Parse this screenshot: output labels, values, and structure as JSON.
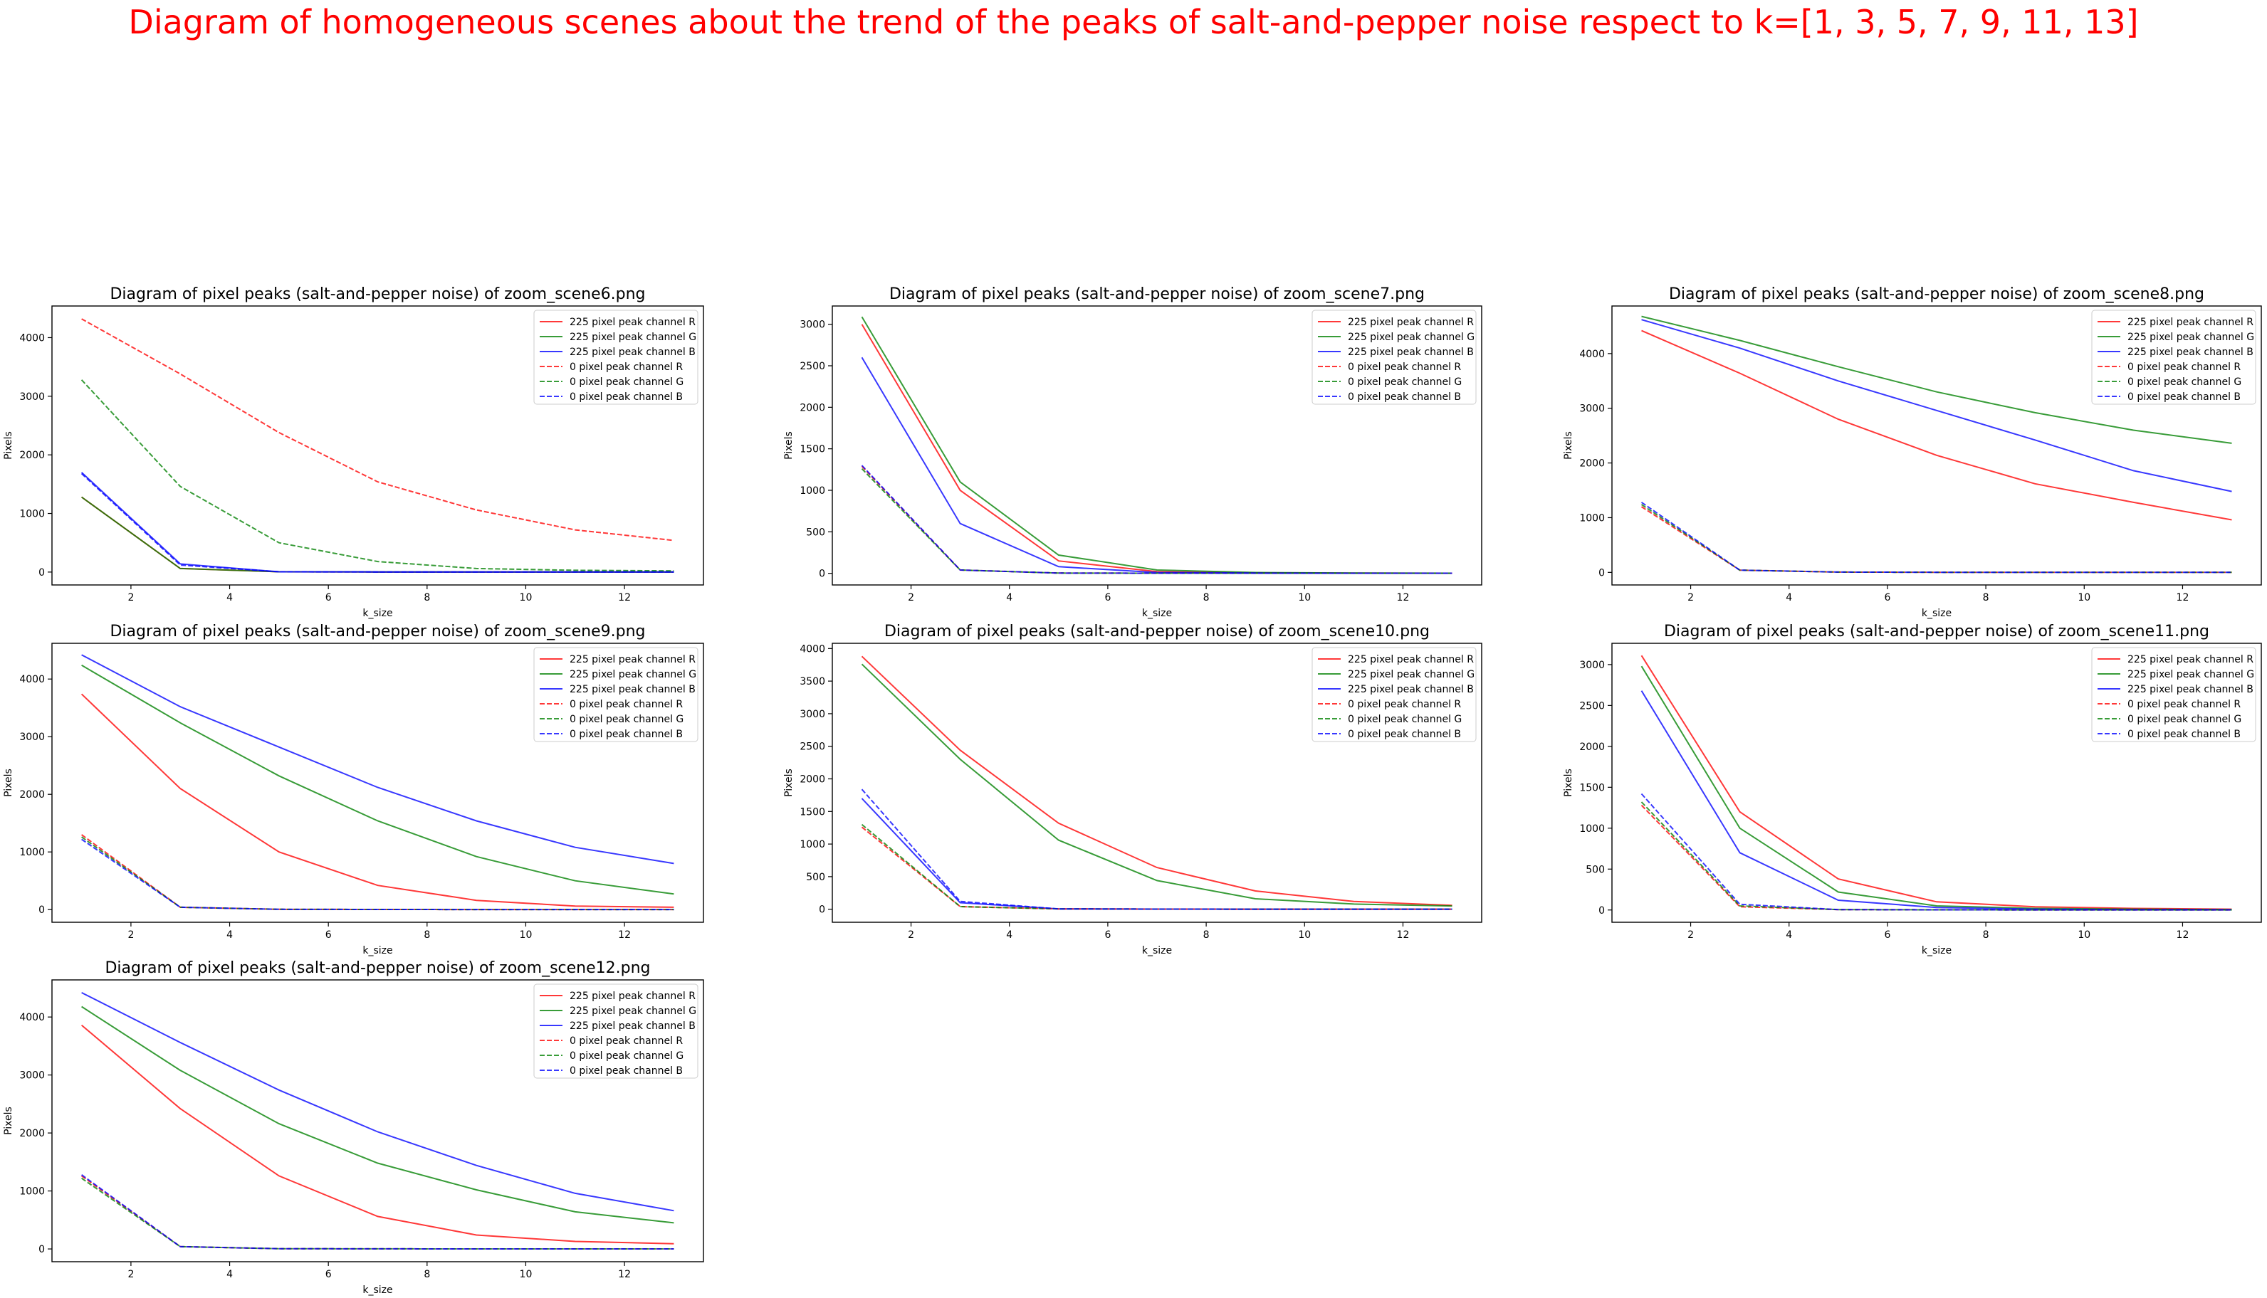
{
  "suptitle": "Diagram of homogeneous scenes about the trend of the peaks of salt-and-pepper noise respect to k=[1, 3, 5, 7, 9, 11, 13]",
  "colors": {
    "R": "#ff0000",
    "G": "#008000",
    "B": "#0000ff"
  },
  "chart_data": [
    {
      "type": "line",
      "title": "Diagram of pixel peaks (salt-and-pepper noise) of zoom_scene6.png",
      "xlabel": "k_size",
      "ylabel": "Pixels",
      "x": [
        1,
        3,
        5,
        7,
        9,
        11,
        13
      ],
      "xlim": [
        0.4,
        13.6
      ],
      "ylim": [
        -220,
        4540
      ],
      "xticks": [
        2,
        4,
        6,
        8,
        10,
        12
      ],
      "yticks": [
        0,
        1000,
        2000,
        3000,
        4000
      ],
      "legend": "upper right",
      "series": [
        {
          "name": "225 pixel peak channel R",
          "color": "R",
          "style": "solid",
          "values": [
            1280,
            60,
            5,
            2,
            1,
            1,
            1
          ]
        },
        {
          "name": "225 pixel peak channel G",
          "color": "G",
          "style": "solid",
          "values": [
            1280,
            60,
            5,
            2,
            1,
            1,
            1
          ]
        },
        {
          "name": "225 pixel peak channel B",
          "color": "B",
          "style": "solid",
          "values": [
            1700,
            140,
            5,
            2,
            1,
            1,
            1
          ]
        },
        {
          "name": "0 pixel peak channel R",
          "color": "R",
          "style": "dashed",
          "values": [
            4320,
            3380,
            2380,
            1540,
            1060,
            720,
            540
          ]
        },
        {
          "name": "0 pixel peak channel G",
          "color": "G",
          "style": "dashed",
          "values": [
            3280,
            1460,
            500,
            180,
            60,
            30,
            20
          ]
        },
        {
          "name": "0 pixel peak channel B",
          "color": "B",
          "style": "dashed",
          "values": [
            1680,
            120,
            5,
            2,
            1,
            1,
            1
          ]
        }
      ]
    },
    {
      "type": "line",
      "title": "Diagram of pixel peaks (salt-and-pepper noise) of zoom_scene7.png",
      "xlabel": "k_size",
      "ylabel": "Pixels",
      "x": [
        1,
        3,
        5,
        7,
        9,
        11,
        13
      ],
      "xlim": [
        0.4,
        13.6
      ],
      "ylim": [
        -140,
        3220
      ],
      "xticks": [
        2,
        4,
        6,
        8,
        10,
        12
      ],
      "yticks": [
        0,
        500,
        1000,
        1500,
        2000,
        2500,
        3000
      ],
      "legend": "upper right",
      "series": [
        {
          "name": "225 pixel peak channel R",
          "color": "R",
          "style": "solid",
          "values": [
            3000,
            1000,
            150,
            20,
            5,
            2,
            1
          ]
        },
        {
          "name": "225 pixel peak channel G",
          "color": "G",
          "style": "solid",
          "values": [
            3090,
            1100,
            220,
            40,
            10,
            3,
            1
          ]
        },
        {
          "name": "225 pixel peak channel B",
          "color": "B",
          "style": "solid",
          "values": [
            2600,
            600,
            80,
            10,
            3,
            1,
            1
          ]
        },
        {
          "name": "0 pixel peak channel R",
          "color": "R",
          "style": "dashed",
          "values": [
            1290,
            40,
            3,
            1,
            1,
            1,
            1
          ]
        },
        {
          "name": "0 pixel peak channel G",
          "color": "G",
          "style": "dashed",
          "values": [
            1260,
            40,
            3,
            1,
            1,
            1,
            1
          ]
        },
        {
          "name": "0 pixel peak channel B",
          "color": "B",
          "style": "dashed",
          "values": [
            1300,
            40,
            3,
            1,
            1,
            1,
            1
          ]
        }
      ]
    },
    {
      "type": "line",
      "title": "Diagram of pixel peaks (salt-and-pepper noise) of zoom_scene8.png",
      "xlabel": "k_size",
      "ylabel": "Pixels",
      "x": [
        1,
        3,
        5,
        7,
        9,
        11,
        13
      ],
      "xlim": [
        0.4,
        13.6
      ],
      "ylim": [
        -230,
        4870
      ],
      "xticks": [
        2,
        4,
        6,
        8,
        10,
        12
      ],
      "yticks": [
        0,
        1000,
        2000,
        3000,
        4000
      ],
      "legend": "upper right",
      "series": [
        {
          "name": "225 pixel peak channel R",
          "color": "R",
          "style": "solid",
          "values": [
            4420,
            3640,
            2800,
            2140,
            1620,
            1280,
            960
          ]
        },
        {
          "name": "225 pixel peak channel G",
          "color": "G",
          "style": "solid",
          "values": [
            4680,
            4240,
            3760,
            3300,
            2920,
            2600,
            2360
          ]
        },
        {
          "name": "225 pixel peak channel B",
          "color": "B",
          "style": "solid",
          "values": [
            4620,
            4100,
            3500,
            2960,
            2420,
            1860,
            1480
          ]
        },
        {
          "name": "0 pixel peak channel R",
          "color": "R",
          "style": "dashed",
          "values": [
            1200,
            40,
            5,
            2,
            1,
            1,
            1
          ]
        },
        {
          "name": "0 pixel peak channel G",
          "color": "G",
          "style": "dashed",
          "values": [
            1240,
            40,
            5,
            2,
            1,
            1,
            1
          ]
        },
        {
          "name": "0 pixel peak channel B",
          "color": "B",
          "style": "dashed",
          "values": [
            1280,
            40,
            5,
            2,
            1,
            1,
            1
          ]
        }
      ]
    },
    {
      "type": "line",
      "title": "Diagram of pixel peaks (salt-and-pepper noise) of zoom_scene9.png",
      "xlabel": "k_size",
      "ylabel": "Pixels",
      "x": [
        1,
        3,
        5,
        7,
        9,
        11,
        13
      ],
      "xlim": [
        0.4,
        13.6
      ],
      "ylim": [
        -220,
        4620
      ],
      "xticks": [
        2,
        4,
        6,
        8,
        10,
        12
      ],
      "yticks": [
        0,
        1000,
        2000,
        3000,
        4000
      ],
      "legend": "upper right",
      "series": [
        {
          "name": "225 pixel peak channel R",
          "color": "R",
          "style": "solid",
          "values": [
            3740,
            2100,
            1000,
            420,
            160,
            60,
            40
          ]
        },
        {
          "name": "225 pixel peak channel G",
          "color": "G",
          "style": "solid",
          "values": [
            4240,
            3240,
            2320,
            1540,
            920,
            500,
            270
          ]
        },
        {
          "name": "225 pixel peak channel B",
          "color": "B",
          "style": "solid",
          "values": [
            4420,
            3520,
            2820,
            2120,
            1540,
            1080,
            800
          ]
        },
        {
          "name": "0 pixel peak channel R",
          "color": "R",
          "style": "dashed",
          "values": [
            1300,
            40,
            5,
            2,
            1,
            1,
            1
          ]
        },
        {
          "name": "0 pixel peak channel G",
          "color": "G",
          "style": "dashed",
          "values": [
            1260,
            40,
            5,
            2,
            1,
            1,
            1
          ]
        },
        {
          "name": "0 pixel peak channel B",
          "color": "B",
          "style": "dashed",
          "values": [
            1220,
            40,
            5,
            2,
            1,
            1,
            1
          ]
        }
      ]
    },
    {
      "type": "line",
      "title": "Diagram of pixel peaks (salt-and-pepper noise) of zoom_scene10.png",
      "xlabel": "k_size",
      "ylabel": "Pixels",
      "x": [
        1,
        3,
        5,
        7,
        9,
        11,
        13
      ],
      "xlim": [
        0.4,
        13.6
      ],
      "ylim": [
        -200,
        4080
      ],
      "xticks": [
        2,
        4,
        6,
        8,
        10,
        12
      ],
      "yticks": [
        0,
        500,
        1000,
        1500,
        2000,
        2500,
        3000,
        3500,
        4000
      ],
      "legend": "upper right",
      "series": [
        {
          "name": "225 pixel peak channel R",
          "color": "R",
          "style": "solid",
          "values": [
            3880,
            2440,
            1320,
            640,
            280,
            120,
            60
          ]
        },
        {
          "name": "225 pixel peak channel G",
          "color": "G",
          "style": "solid",
          "values": [
            3760,
            2300,
            1060,
            440,
            160,
            80,
            50
          ]
        },
        {
          "name": "225 pixel peak channel B",
          "color": "B",
          "style": "solid",
          "values": [
            1700,
            100,
            5,
            2,
            1,
            1,
            1
          ]
        },
        {
          "name": "0 pixel peak channel R",
          "color": "R",
          "style": "dashed",
          "values": [
            1260,
            40,
            5,
            2,
            1,
            1,
            1
          ]
        },
        {
          "name": "0 pixel peak channel G",
          "color": "G",
          "style": "dashed",
          "values": [
            1300,
            40,
            5,
            2,
            1,
            1,
            1
          ]
        },
        {
          "name": "0 pixel peak channel B",
          "color": "B",
          "style": "dashed",
          "values": [
            1840,
            120,
            5,
            2,
            1,
            1,
            1
          ]
        }
      ]
    },
    {
      "type": "line",
      "title": "Diagram of pixel peaks (salt-and-pepper noise) of zoom_scene11.png",
      "xlabel": "k_size",
      "ylabel": "Pixels",
      "x": [
        1,
        3,
        5,
        7,
        9,
        11,
        13
      ],
      "xlim": [
        0.4,
        13.6
      ],
      "ylim": [
        -150,
        3260
      ],
      "xticks": [
        2,
        4,
        6,
        8,
        10,
        12
      ],
      "yticks": [
        0,
        500,
        1000,
        1500,
        2000,
        2500,
        3000
      ],
      "legend": "upper right",
      "series": [
        {
          "name": "225 pixel peak channel R",
          "color": "R",
          "style": "solid",
          "values": [
            3110,
            1200,
            380,
            100,
            40,
            20,
            10
          ]
        },
        {
          "name": "225 pixel peak channel G",
          "color": "G",
          "style": "solid",
          "values": [
            2980,
            1000,
            220,
            50,
            20,
            10,
            5
          ]
        },
        {
          "name": "225 pixel peak channel B",
          "color": "B",
          "style": "solid",
          "values": [
            2680,
            700,
            120,
            30,
            10,
            5,
            3
          ]
        },
        {
          "name": "0 pixel peak channel R",
          "color": "R",
          "style": "dashed",
          "values": [
            1280,
            40,
            5,
            2,
            1,
            1,
            1
          ]
        },
        {
          "name": "0 pixel peak channel G",
          "color": "G",
          "style": "dashed",
          "values": [
            1320,
            50,
            5,
            2,
            1,
            1,
            1
          ]
        },
        {
          "name": "0 pixel peak channel B",
          "color": "B",
          "style": "dashed",
          "values": [
            1420,
            70,
            5,
            2,
            1,
            1,
            1
          ]
        }
      ]
    },
    {
      "type": "line",
      "title": "Diagram of pixel peaks (salt-and-pepper noise) of zoom_scene12.png",
      "xlabel": "k_size",
      "ylabel": "Pixels",
      "x": [
        1,
        3,
        5,
        7,
        9,
        11,
        13
      ],
      "xlim": [
        0.4,
        13.6
      ],
      "ylim": [
        -220,
        4640
      ],
      "xticks": [
        2,
        4,
        6,
        8,
        10,
        12
      ],
      "yticks": [
        0,
        1000,
        2000,
        3000,
        4000
      ],
      "legend": "upper right",
      "series": [
        {
          "name": "225 pixel peak channel R",
          "color": "R",
          "style": "solid",
          "values": [
            3860,
            2420,
            1260,
            560,
            240,
            130,
            90
          ]
        },
        {
          "name": "225 pixel peak channel G",
          "color": "G",
          "style": "solid",
          "values": [
            4180,
            3080,
            2160,
            1480,
            1020,
            640,
            450
          ]
        },
        {
          "name": "225 pixel peak channel B",
          "color": "B",
          "style": "solid",
          "values": [
            4420,
            3560,
            2740,
            2020,
            1440,
            960,
            660
          ]
        },
        {
          "name": "0 pixel peak channel R",
          "color": "R",
          "style": "dashed",
          "values": [
            1260,
            40,
            5,
            2,
            1,
            1,
            1
          ]
        },
        {
          "name": "0 pixel peak channel G",
          "color": "G",
          "style": "dashed",
          "values": [
            1220,
            40,
            5,
            2,
            1,
            1,
            1
          ]
        },
        {
          "name": "0 pixel peak channel B",
          "color": "B",
          "style": "dashed",
          "values": [
            1280,
            40,
            5,
            2,
            1,
            1,
            1
          ]
        }
      ]
    }
  ]
}
